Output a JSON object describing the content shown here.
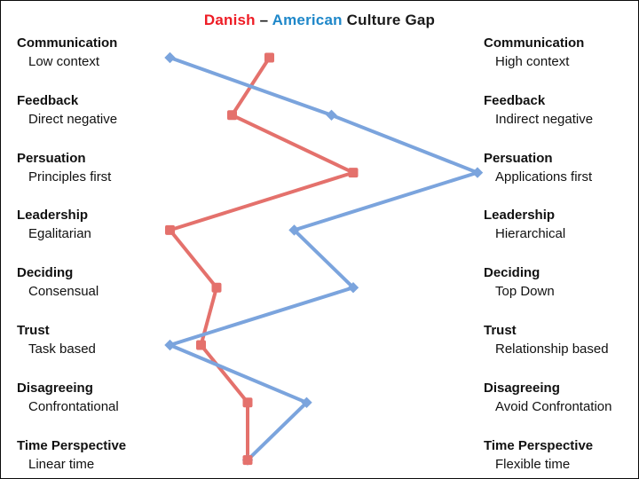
{
  "title": {
    "parts": [
      {
        "text": "Danish",
        "color": "#ee1c25"
      },
      {
        "text": " – ",
        "color": "#1a1a1a"
      },
      {
        "text": "American",
        "color": "#1e87c9"
      },
      {
        "text": " Culture Gap",
        "color": "#1a1a1a"
      }
    ]
  },
  "chart_data": {
    "type": "line",
    "title": "Danish – American Culture Gap",
    "orientation": "values on horizontal axis, one category per row top-to-bottom",
    "grid": false,
    "legend": "none (series named in title)",
    "value_range": [
      0,
      100
    ],
    "categories": [
      "Communication",
      "Feedback",
      "Persuation",
      "Leadership",
      "Deciding",
      "Trust",
      "Disagreeing",
      "Time Perspective"
    ],
    "left_pole_labels": [
      "Low context",
      "Direct negative",
      "Principles first",
      "Egalitarian",
      "Consensual",
      "Task based",
      "Confrontational",
      "Linear time"
    ],
    "right_pole_labels": [
      "High context",
      "Indirect negative",
      "Applications first",
      "Hierarchical",
      "Top Down",
      "Relationship based",
      "Avoid Confrontation",
      "Flexible time"
    ],
    "series": [
      {
        "name": "Danish",
        "color": "#e4716c",
        "marker": "square",
        "values": [
          33,
          21,
          60,
          1,
          16,
          11,
          26,
          26
        ]
      },
      {
        "name": "American",
        "color": "#7ba4dd",
        "marker": "diamond",
        "values": [
          1,
          53,
          100,
          41,
          60,
          1,
          45,
          26
        ]
      }
    ]
  },
  "rows": [
    {
      "dimension": "Communication",
      "left": "Low context",
      "right": "High context"
    },
    {
      "dimension": "Feedback",
      "left": "Direct negative",
      "right": "Indirect negative"
    },
    {
      "dimension": "Persuation",
      "left": "Principles first",
      "right": "Applications first"
    },
    {
      "dimension": "Leadership",
      "left": "Egalitarian",
      "right": "Hierarchical"
    },
    {
      "dimension": "Deciding",
      "left": "Consensual",
      "right": "Top Down"
    },
    {
      "dimension": "Trust",
      "left": "Task based",
      "right": "Relationship based"
    },
    {
      "dimension": "Disagreeing",
      "left": "Confrontational",
      "right": "Avoid Confrontation"
    },
    {
      "dimension": "Time Perspective",
      "left": "Linear time",
      "right": "Flexible time"
    }
  ]
}
